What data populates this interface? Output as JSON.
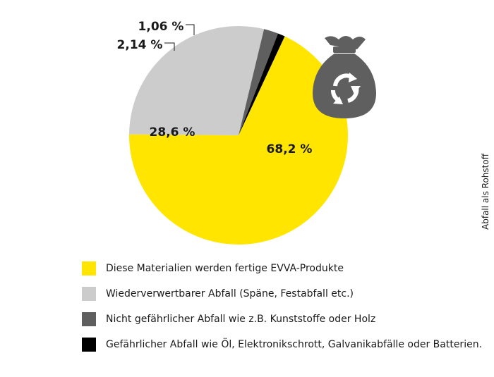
{
  "chart_data": {
    "type": "pie",
    "categories": [
      "Diese Materialien werden fertige EVVA-Produkte",
      "Wiederverwertbarer Abfall (Späne, Festabfall etc.)",
      "Nicht gefährlicher Abfall wie z.B. Kunststoffe oder Holz",
      "Gefährlicher Abfall wie Öl, Elektronikschrott, Galvanikabfälle oder Batterien."
    ],
    "values": [
      68.2,
      28.6,
      2.14,
      1.06
    ],
    "data_labels": [
      "68,2 %",
      "28,6 %",
      "2,14 %",
      "1,06 %"
    ],
    "colors": [
      "#ffe500",
      "#cccccc",
      "#5f5f5f",
      "#000000"
    ],
    "legend_position": "bottom-left",
    "side_label": "Abfall als Rohstoff",
    "icon": "recycling-bag-icon"
  }
}
